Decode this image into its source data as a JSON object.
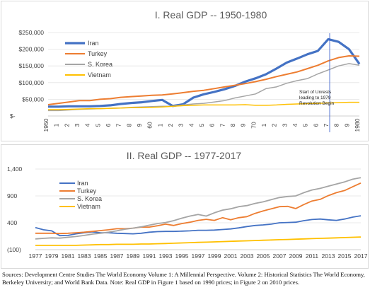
{
  "chart_data": [
    {
      "type": "line",
      "title": "I. Real GDP -- 1950-1980",
      "xlabel": "",
      "ylabel": "",
      "categories": [
        "1950",
        "1",
        "2",
        "3",
        "4",
        "5",
        "6",
        "7",
        "8",
        "9",
        "60",
        "1",
        "2",
        "3",
        "4",
        "5",
        "6",
        "7",
        "8",
        "9",
        "70",
        "1",
        "2",
        "3",
        "4",
        "5",
        "6",
        "7",
        "8",
        "9",
        "1980"
      ],
      "y_tick_labels": [
        "$-",
        "$50,000",
        "$100,000",
        "$150,000",
        "$200,000",
        "$250,000"
      ],
      "ylim": [
        0,
        250000
      ],
      "legend_position": "top-right",
      "series": [
        {
          "name": "Iran",
          "color": "#4472C4",
          "width": 3.2,
          "values": [
            28000,
            28000,
            29000,
            29000,
            29000,
            30000,
            32000,
            36000,
            39000,
            41000,
            45000,
            48000,
            30000,
            35000,
            55000,
            65000,
            72000,
            80000,
            90000,
            103000,
            113000,
            125000,
            142000,
            160000,
            172000,
            185000,
            195000,
            230000,
            222000,
            200000,
            156000
          ]
        },
        {
          "name": "Turkey",
          "color": "#ED7D31",
          "width": 2,
          "values": [
            34000,
            38000,
            42000,
            46000,
            46000,
            50000,
            52000,
            56000,
            58000,
            60000,
            62000,
            63000,
            66000,
            70000,
            74000,
            77000,
            82000,
            87000,
            92000,
            97000,
            103000,
            110000,
            118000,
            125000,
            132000,
            142000,
            152000,
            165000,
            175000,
            180000,
            179000
          ]
        },
        {
          "name": "S. Korea",
          "color": "#A5A5A5",
          "width": 1.5,
          "values": [
            16000,
            16000,
            18000,
            20000,
            21000,
            22000,
            23000,
            24000,
            26000,
            27000,
            28000,
            29000,
            29000,
            33000,
            36000,
            38000,
            42000,
            46000,
            54000,
            60000,
            66000,
            82000,
            87000,
            98000,
            106000,
            112000,
            126000,
            138000,
            150000,
            157000,
            152000
          ]
        },
        {
          "name": "Vietnam",
          "color": "#FFC000",
          "width": 1.5,
          "values": [
            19000,
            19000,
            20000,
            21000,
            22000,
            22000,
            23000,
            24000,
            25000,
            25000,
            26000,
            27000,
            29000,
            31000,
            32000,
            33000,
            33000,
            33000,
            33000,
            34000,
            32000,
            32000,
            33000,
            35000,
            36000,
            37000,
            38000,
            39000,
            40000,
            41000,
            41000
          ]
        }
      ],
      "annotation": {
        "text_lines": [
          "Start of Unrests",
          "leading to 1979",
          "Revolution Begin"
        ],
        "at_category": "7"
      }
    },
    {
      "type": "line",
      "title": "II. Real GDP -- 1977-2017",
      "xlabel": "",
      "ylabel": "",
      "x": [
        1977,
        1978,
        1979,
        1980,
        1981,
        1982,
        1983,
        1984,
        1985,
        1986,
        1987,
        1988,
        1989,
        1990,
        1991,
        1992,
        1993,
        1994,
        1995,
        1996,
        1997,
        1998,
        1999,
        2000,
        2001,
        2002,
        2003,
        2004,
        2005,
        2006,
        2007,
        2008,
        2009,
        2010,
        2011,
        2012,
        2013,
        2014,
        2015,
        2016,
        2017
      ],
      "x_tick_labels": [
        "1977",
        "1979",
        "1981",
        "1983",
        "1985",
        "1987",
        "1989",
        "1991",
        "1993",
        "1995",
        "1997",
        "1999",
        "2001",
        "2003",
        "2005",
        "2007",
        "2009",
        "2011",
        "2013",
        "2015",
        "2017"
      ],
      "y_tick_labels": [
        "(100)",
        "400",
        "900",
        "1,400"
      ],
      "y_tick_values": [
        -100,
        400,
        900,
        1400
      ],
      "ylim": [
        -100,
        1400
      ],
      "legend_position": "top-left",
      "series": [
        {
          "name": "Iran",
          "color": "#4472C4",
          "width": 1.8,
          "values": [
            310,
            270,
            250,
            160,
            165,
            195,
            215,
            230,
            215,
            215,
            205,
            200,
            195,
            205,
            225,
            235,
            240,
            240,
            245,
            250,
            260,
            260,
            265,
            275,
            285,
            305,
            330,
            350,
            360,
            375,
            400,
            405,
            410,
            440,
            460,
            470,
            455,
            445,
            470,
            505,
            530
          ]
        },
        {
          "name": "Turkey",
          "color": "#ED7D31",
          "width": 1.8,
          "values": [
            205,
            205,
            205,
            200,
            205,
            215,
            225,
            240,
            255,
            270,
            290,
            290,
            300,
            320,
            320,
            345,
            375,
            350,
            385,
            410,
            445,
            465,
            445,
            495,
            455,
            495,
            515,
            575,
            620,
            660,
            700,
            705,
            665,
            740,
            805,
            835,
            905,
            960,
            1000,
            1070,
            1140
          ]
        },
        {
          "name": "S. Korea",
          "color": "#A5A5A5",
          "width": 1.8,
          "values": [
            100,
            110,
            120,
            115,
            130,
            145,
            165,
            190,
            205,
            225,
            250,
            280,
            300,
            325,
            355,
            385,
            405,
            440,
            485,
            525,
            555,
            525,
            585,
            635,
            660,
            700,
            720,
            760,
            790,
            830,
            870,
            890,
            900,
            960,
            1010,
            1040,
            1080,
            1120,
            1160,
            1210,
            1240
          ]
        },
        {
          "name": "Vietnam",
          "color": "#FFC000",
          "width": 1.8,
          "values": [
            -20,
            -20,
            -20,
            -20,
            -20,
            -20,
            -15,
            -10,
            -5,
            -5,
            0,
            0,
            0,
            5,
            5,
            10,
            15,
            20,
            25,
            30,
            35,
            40,
            45,
            50,
            55,
            60,
            65,
            70,
            75,
            80,
            85,
            90,
            95,
            100,
            105,
            110,
            115,
            120,
            125,
            130,
            135
          ]
        }
      ]
    }
  ],
  "caption": "Sources: Development Centre Studies The World Economy Volume 1: A Millennial Perspective. Volume 2: Historical Statistics The World Economy, Berkeley University; and World Bank Data. Note: Real GDP in Figure 1 based on 1990 prices; in Figure 2 on 2010 prices."
}
